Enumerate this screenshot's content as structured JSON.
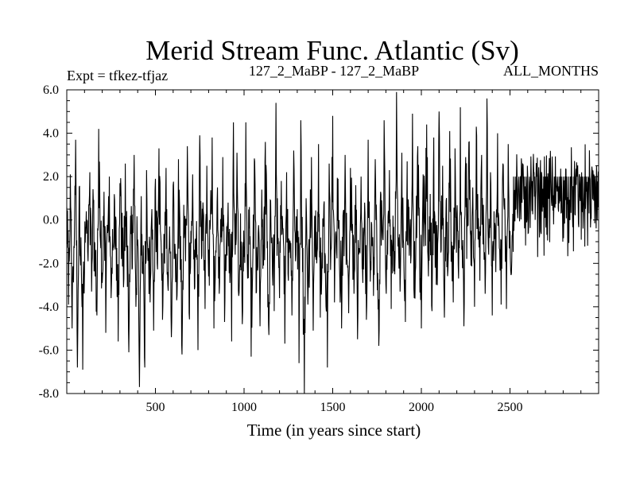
{
  "chart_data": {
    "type": "line",
    "title": "Merid Stream Func. Atlantic (Sv)",
    "subtitle_left": "Expt = tfkez-tfjaz",
    "subtitle_center": "127_2_MaBP - 127_2_MaBP",
    "subtitle_right": "ALL_MONTHS",
    "xlabel": "Time (in years since start)",
    "ylabel": "",
    "xlim": [
      0,
      3000
    ],
    "ylim": [
      -8.0,
      6.0
    ],
    "x_ticks": [
      500,
      1000,
      1500,
      2000,
      2500
    ],
    "x_tick_labels": [
      "500",
      "1000",
      "1500",
      "2000",
      "2500"
    ],
    "y_ticks": [
      6.0,
      4.0,
      2.0,
      0.0,
      -2.0,
      -4.0,
      -6.0,
      -8.0
    ],
    "y_tick_labels": [
      "6.0",
      "4.0",
      "2.0",
      "0.0",
      "-2.0",
      "-4.0",
      "-6.0",
      "-8.0"
    ],
    "grid": false,
    "line_color": "#000000",
    "series": [
      {
        "values_step_years": 10,
        "values": [
          0.6,
          -3.9,
          2.1,
          -5.0,
          -1.2,
          3.7,
          -6.8,
          1.5,
          -0.8,
          -6.9,
          -2.4,
          0.4,
          -1.9,
          2.2,
          -3.3,
          0.8,
          -2.6,
          -4.4,
          4.2,
          -1.0,
          -2.9,
          1.3,
          -5.2,
          -0.6,
          2.0,
          -3.6,
          -1.4,
          0.9,
          -2.8,
          -5.6,
          1.7,
          -0.4,
          -3.1,
          2.6,
          -1.7,
          -6.1,
          0.2,
          -2.2,
          3.0,
          -4.0,
          -0.9,
          -7.7,
          1.1,
          -2.5,
          -6.8,
          2.3,
          -1.3,
          -3.8,
          0.5,
          -5.1,
          1.9,
          -2.0,
          3.3,
          -0.7,
          -4.6,
          -1.6,
          2.4,
          -3.0,
          -0.3,
          -5.4,
          1.6,
          -1.1,
          -3.7,
          2.8,
          -2.3,
          -6.2,
          0.7,
          -1.9,
          3.4,
          -4.3,
          -0.5,
          2.1,
          -3.2,
          -1.0,
          -6.0,
          3.9,
          -1.8,
          0.4,
          -4.1,
          2.5,
          -2.6,
          -0.2,
          3.8,
          -5.0,
          -1.4,
          1.5,
          -3.4,
          -0.8,
          2.9,
          -4.7,
          -1.2,
          0.8,
          -2.9,
          -5.6,
          4.5,
          -1.6,
          3.1,
          -3.5,
          0.3,
          -4.8,
          -1.7,
          4.5,
          -2.7,
          0.6,
          -6.3,
          -1.5,
          2.7,
          -3.3,
          -0.6,
          -4.9,
          1.4,
          -2.1,
          3.6,
          -1.3,
          -5.3,
          0.9,
          -2.5,
          -4.2,
          5.4,
          -1.1,
          -3.6,
          1.8,
          -0.4,
          -5.7,
          2.2,
          -2.8,
          -1.0,
          -4.4,
          3.2,
          -1.9,
          0.5,
          -6.6,
          4.6,
          -2.4,
          -8.5,
          1.0,
          -3.9,
          -1.2,
          2.9,
          -5.1,
          0.1,
          -2.0,
          3.5,
          -4.5,
          -1.5,
          0.7,
          -3.1,
          -6.8,
          2.6,
          -1.4,
          4.8,
          -3.8,
          -0.9,
          1.9,
          -2.7,
          -5.0,
          0.4,
          3.0,
          -1.8,
          -4.3,
          2.4,
          -0.6,
          -3.4,
          1.6,
          -5.5,
          -1.3,
          2.0,
          -2.9,
          0.8,
          -4.6,
          3.7,
          -1.7,
          -0.2,
          -3.5,
          2.8,
          -2.2,
          -5.8,
          1.3,
          -0.5,
          4.6,
          -3.0,
          -1.6,
          2.3,
          -4.1,
          0.2,
          -2.5,
          5.9,
          -0.8,
          -3.3,
          3.1,
          -1.1,
          -4.7,
          2.7,
          0.6,
          -2.0,
          4.9,
          -3.6,
          -0.4,
          3.4,
          -1.9,
          -5.0,
          2.1,
          -0.1,
          4.4,
          -2.6,
          1.2,
          -4.2,
          3.8,
          -0.7,
          -3.0,
          5.0,
          -1.5,
          2.5,
          -4.5,
          0.9,
          -2.3,
          4.1,
          -1.0,
          -3.8,
          3.3,
          0.3,
          -2.7,
          5.2,
          -1.2,
          -4.9,
          2.9,
          -0.3,
          3.6,
          -2.1,
          1.5,
          -4.0,
          4.3,
          -0.9,
          -2.8,
          3.0,
          0.7,
          -3.4,
          5.6,
          -1.6,
          2.2,
          -4.4,
          0.4,
          -2.4,
          4.0,
          -1.3,
          -3.9,
          2.6,
          1.0,
          -4.1,
          3.5,
          -0.5,
          -1.9,
          2.0
        ]
      }
    ]
  }
}
